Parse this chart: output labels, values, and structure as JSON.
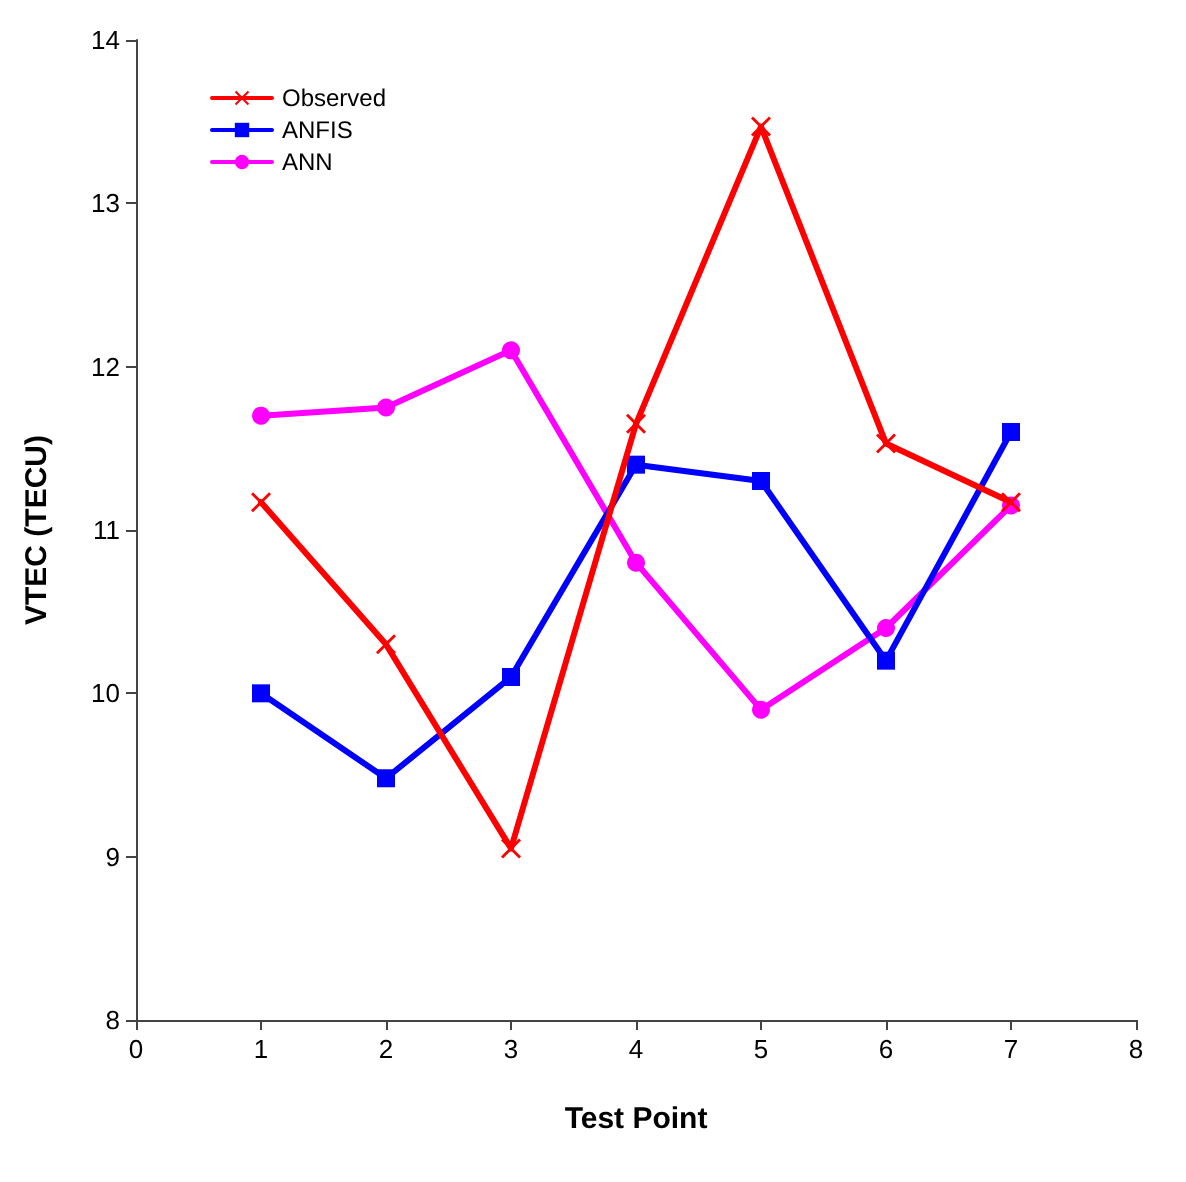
{
  "chart_data": {
    "type": "line",
    "xlabel": "Test Point",
    "ylabel": "VTEC (TECU)",
    "x": [
      1,
      2,
      3,
      4,
      5,
      6,
      7
    ],
    "series": [
      {
        "name": "Observed",
        "color": "#ff0000",
        "marker": "cross",
        "values": [
          11.17,
          10.3,
          9.05,
          11.65,
          13.47,
          11.53,
          11.17
        ]
      },
      {
        "name": "ANFIS",
        "color": "#0000ff",
        "marker": "square",
        "values": [
          10.0,
          9.48,
          10.1,
          11.4,
          11.3,
          10.2,
          11.6
        ]
      },
      {
        "name": "ANN",
        "color": "#ff00ff",
        "marker": "circle",
        "values": [
          11.7,
          11.75,
          12.1,
          10.8,
          9.9,
          10.4,
          11.15
        ]
      }
    ],
    "xlim": [
      0,
      8
    ],
    "xticks": [
      0,
      1,
      2,
      3,
      4,
      5,
      6,
      7,
      8
    ],
    "ylim": [
      8,
      14
    ],
    "yticks": [
      8,
      9,
      10,
      11,
      12,
      13,
      14
    ],
    "grid": false,
    "legend": "top left"
  }
}
